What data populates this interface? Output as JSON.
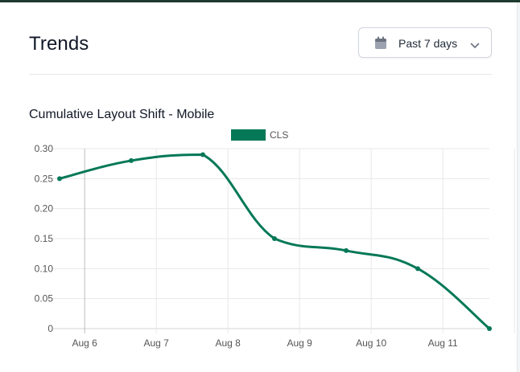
{
  "header": {
    "title": "Trends",
    "date_range": {
      "label": "Past 7 days",
      "icon": "calendar-icon",
      "dropdown_icon": "chevron-down-icon"
    }
  },
  "chart_title": "Cumulative Layout Shift - Mobile",
  "colors": {
    "series": "#047857",
    "top_bar": "#1f3a2f"
  },
  "chart_data": {
    "type": "line",
    "title": "Cumulative Layout Shift - Mobile",
    "x_tick_labels": [
      "Aug 6",
      "Aug 7",
      "Aug 8",
      "Aug 9",
      "Aug 10",
      "Aug 11"
    ],
    "y_tick_labels": [
      "0",
      "0.05",
      "0.10",
      "0.15",
      "0.20",
      "0.25",
      "0.30"
    ],
    "ylim": [
      0,
      0.3
    ],
    "grid": true,
    "legend": "top-center",
    "series": [
      {
        "name": "CLS",
        "color": "#047857",
        "points": [
          {
            "x": "Aug 5",
            "y": 0.25
          },
          {
            "x": "Aug 6",
            "y": 0.28
          },
          {
            "x": "Aug 7",
            "y": 0.29
          },
          {
            "x": "Aug 8",
            "y": 0.15
          },
          {
            "x": "Aug 9",
            "y": 0.13
          },
          {
            "x": "Aug 10",
            "y": 0.1
          },
          {
            "x": "Aug 11",
            "y": 0
          }
        ]
      }
    ]
  }
}
